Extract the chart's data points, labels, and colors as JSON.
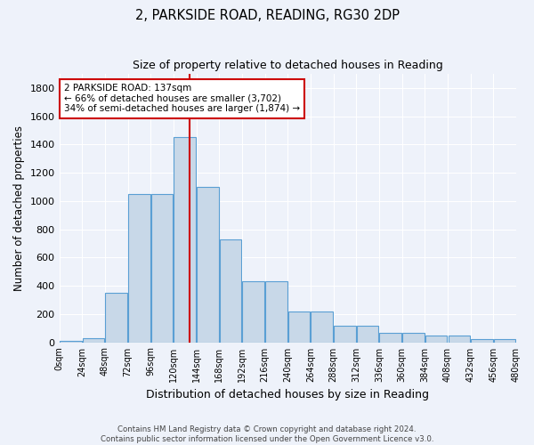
{
  "title": "2, PARKSIDE ROAD, READING, RG30 2DP",
  "subtitle": "Size of property relative to detached houses in Reading",
  "xlabel": "Distribution of detached houses by size in Reading",
  "ylabel": "Number of detached properties",
  "bar_color": "#c8d8e8",
  "bar_edge_color": "#5a9fd4",
  "bin_edges": [
    0,
    24,
    48,
    72,
    96,
    120,
    144,
    168,
    192,
    216,
    240,
    264,
    288,
    312,
    336,
    360,
    384,
    408,
    432,
    456,
    480
  ],
  "bar_heights": [
    10,
    30,
    350,
    1050,
    1050,
    1450,
    1100,
    730,
    430,
    430,
    215,
    215,
    115,
    115,
    65,
    65,
    50,
    50,
    25,
    20
  ],
  "property_size": 137,
  "vline_color": "#cc0000",
  "annotation_text": "2 PARKSIDE ROAD: 137sqm\n← 66% of detached houses are smaller (3,702)\n34% of semi-detached houses are larger (1,874) →",
  "annotation_box_color": "#ffffff",
  "annotation_box_edge_color": "#cc0000",
  "ylim": [
    0,
    1900
  ],
  "yticks": [
    0,
    200,
    400,
    600,
    800,
    1000,
    1200,
    1400,
    1600,
    1800
  ],
  "footer_line1": "Contains HM Land Registry data © Crown copyright and database right 2024.",
  "footer_line2": "Contains public sector information licensed under the Open Government Licence v3.0.",
  "bg_color": "#eef2fa",
  "grid_color": "#ffffff"
}
